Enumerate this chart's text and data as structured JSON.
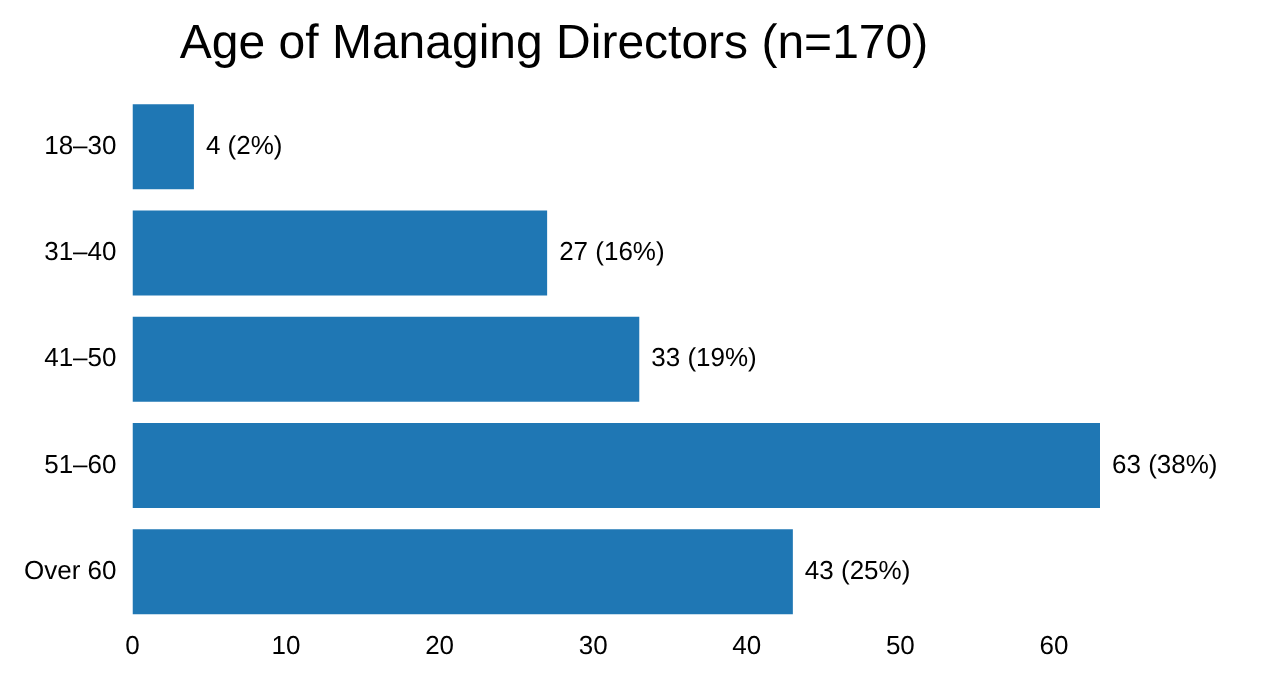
{
  "chart_data": {
    "type": "bar",
    "orientation": "horizontal",
    "title": "Age of Managing Directors (n=170)",
    "categories": [
      "18–30",
      "31–40",
      "41–50",
      "51–60",
      "Over 60"
    ],
    "values": [
      4,
      27,
      33,
      63,
      43
    ],
    "color": "#1f77b4",
    "value_labels": [
      "4 (2%)",
      "27 (16%)",
      "33 (19%)",
      "63 (38%)",
      "43 (25%)"
    ],
    "xlim": [
      0,
      63
    ],
    "xticks": [
      0,
      10,
      20,
      30,
      40,
      50,
      60
    ],
    "grid": false,
    "legend": false
  }
}
